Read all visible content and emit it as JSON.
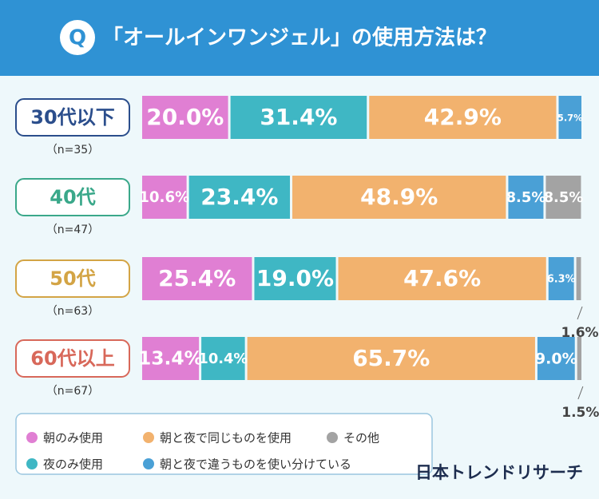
{
  "header": {
    "q": "Q",
    "title": "「オールインワンジェル」の使用方法は？"
  },
  "chart_data": {
    "type": "stacked-bar-100",
    "categories": [
      "30代以下",
      "40代",
      "50代",
      "60代以上"
    ],
    "category_colors": [
      "#2b4e8c",
      "#3aa88a",
      "#d3a445",
      "#d8685a"
    ],
    "sample_sizes": [
      "（n=35）",
      "（n=47）",
      "（n=63）",
      "（n=67）"
    ],
    "xlim": [
      0,
      100
    ],
    "series": [
      {
        "name": "朝のみ使用",
        "color": "#e07fd3",
        "values": [
          20.0,
          10.6,
          25.4,
          13.4
        ],
        "value_labels": [
          "20.0%",
          "10.6%",
          "25.4%",
          "13.4%"
        ]
      },
      {
        "name": "夜のみ使用",
        "color": "#3fb7c4",
        "values": [
          31.4,
          23.4,
          19.0,
          10.4
        ],
        "value_labels": [
          "31.4%",
          "23.4%",
          "19.0%",
          "10.4%"
        ]
      },
      {
        "name": "朝と夜で同じものを使用",
        "color": "#f2b26e",
        "values": [
          42.9,
          48.9,
          47.6,
          65.7
        ],
        "value_labels": [
          "42.9%",
          "48.9%",
          "47.6%",
          "65.7%"
        ]
      },
      {
        "name": "朝と夜で違うものを使い分けている",
        "color": "#4aa0d6",
        "values": [
          5.7,
          8.5,
          6.3,
          9.0
        ],
        "value_labels": [
          "5.7%",
          "8.5%",
          "6.3%",
          "9.0%"
        ]
      },
      {
        "name": "その他",
        "color": "#a3a3a3",
        "values": [
          null,
          8.5,
          1.6,
          1.5
        ],
        "value_labels": [
          null,
          "8.5%",
          "1.6%",
          "1.5%"
        ]
      }
    ]
  },
  "footer": {
    "brand": "日本トレンドリサーチ"
  }
}
